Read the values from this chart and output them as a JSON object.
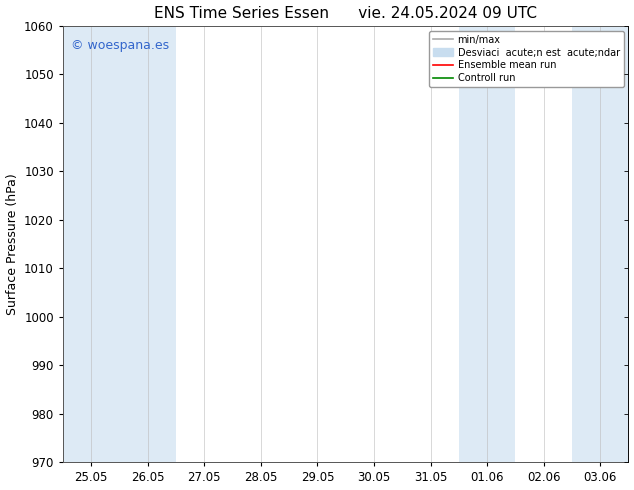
{
  "title": "ENS Time Series Essen      vie. 24.05.2024 09 UTC",
  "ylabel": "Surface Pressure (hPa)",
  "ylim": [
    970,
    1060
  ],
  "yticks": [
    970,
    980,
    990,
    1000,
    1010,
    1020,
    1030,
    1040,
    1050,
    1060
  ],
  "xtick_labels": [
    "25.05",
    "26.05",
    "27.05",
    "28.05",
    "29.05",
    "30.05",
    "31.05",
    "01.06",
    "02.06",
    "03.06"
  ],
  "background_color": "#ffffff",
  "plot_bg_color": "#ffffff",
  "band_color": "#ddeaf5",
  "watermark": "© woespana.es",
  "watermark_color": "#3366cc",
  "legend_entries": [
    "min/max",
    "Desviaci  acute;n est  acute;ndar",
    "Ensemble mean run",
    "Controll run"
  ],
  "legend_colors": [
    "#aaaaaa",
    "#c8ddef",
    "#ff0000",
    "#008800"
  ],
  "title_fontsize": 11,
  "axis_fontsize": 9,
  "tick_fontsize": 8.5,
  "watermark_fontsize": 9
}
